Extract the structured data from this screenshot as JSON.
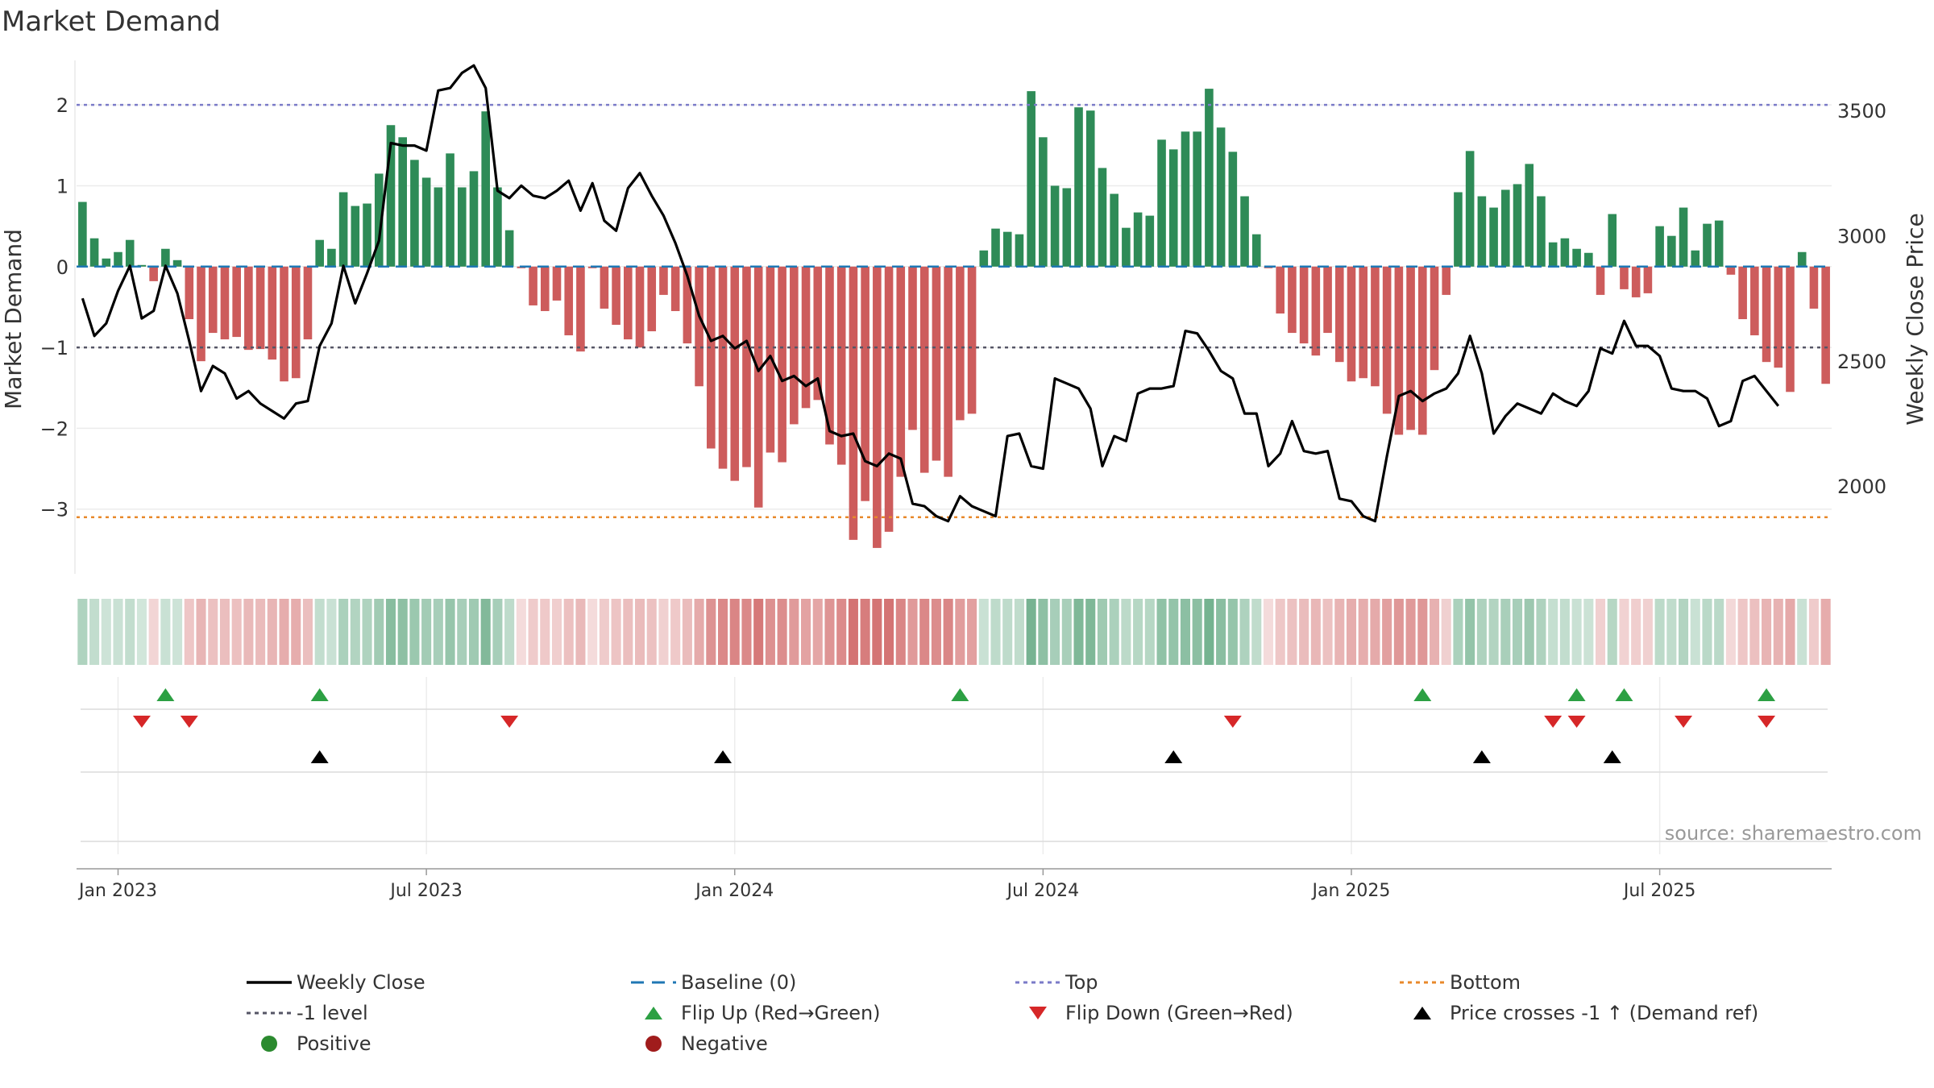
{
  "chart_data": {
    "type": "bar",
    "title": "Market Demand",
    "ylabel": "Market Demand",
    "y2label": "Weekly Close Price",
    "ylim": [
      -3.8,
      2.55
    ],
    "y2lim": [
      1650,
      3700
    ],
    "yticks": [
      2,
      1,
      0,
      -1,
      -2,
      -3
    ],
    "yticklabels": [
      "2",
      "1",
      "0",
      "−1",
      "−2",
      "−3"
    ],
    "y2ticks": [
      3500,
      3000,
      2500,
      2000
    ],
    "y2ticklabels": [
      "3500",
      "3000",
      "2500",
      "2000"
    ],
    "top_level": 2.0,
    "bottom_level": -3.1,
    "ref_level": -1.0,
    "x_start": "Dec 2022",
    "x_end": "Aug 2025",
    "x_weeks": 143,
    "xticks": [
      3,
      29,
      55,
      81,
      107,
      133
    ],
    "xticklabels": [
      "Jan 2023",
      "Jul 2023",
      "Jan 2024",
      "Jul 2024",
      "Jan 2025",
      "Jul 2025"
    ],
    "demand_values": [
      0.8,
      0.35,
      0.1,
      0.18,
      0.33,
      0.02,
      -0.18,
      0.22,
      0.08,
      -0.65,
      -1.17,
      -0.82,
      -0.9,
      -0.87,
      -1.03,
      -1.02,
      -1.15,
      -1.42,
      -1.38,
      -0.9,
      0.33,
      0.22,
      0.92,
      0.75,
      0.78,
      1.15,
      1.75,
      1.6,
      1.32,
      1.1,
      0.98,
      1.4,
      0.98,
      1.18,
      1.92,
      0.98,
      0.45,
      -0.02,
      -0.48,
      -0.55,
      -0.42,
      -0.85,
      -1.05,
      -0.02,
      -0.52,
      -0.72,
      -0.9,
      -1.0,
      -0.8,
      -0.35,
      -0.55,
      -0.95,
      -1.48,
      -2.25,
      -2.5,
      -2.65,
      -2.48,
      -2.98,
      -2.3,
      -2.42,
      -1.95,
      -1.75,
      -1.65,
      -2.2,
      -2.45,
      -3.38,
      -2.9,
      -3.48,
      -3.28,
      -2.6,
      -2.02,
      -2.55,
      -2.4,
      -2.6,
      -1.9,
      -1.82,
      0.2,
      0.47,
      0.43,
      0.4,
      2.17,
      1.6,
      1.0,
      0.97,
      1.97,
      1.93,
      1.22,
      0.9,
      0.48,
      0.67,
      0.63,
      1.57,
      1.45,
      1.67,
      1.67,
      2.2,
      1.72,
      1.42,
      0.87,
      0.4,
      -0.02,
      -0.58,
      -0.82,
      -0.95,
      -1.1,
      -0.82,
      -1.18,
      -1.42,
      -1.38,
      -1.48,
      -1.82,
      -2.08,
      -2.02,
      -2.08,
      -1.28,
      -0.35,
      0.92,
      1.43,
      0.87,
      0.73,
      0.95,
      1.02,
      1.27,
      0.87,
      0.3,
      0.35,
      0.22,
      0.17,
      -0.35,
      0.65,
      -0.28,
      -0.38,
      -0.33,
      0.5,
      0.38,
      0.73,
      0.2,
      0.53,
      0.57,
      -0.1,
      -0.65,
      -0.85,
      -1.18,
      -1.25,
      -1.55,
      0.18,
      -0.52,
      -1.45
    ],
    "price_values": [
      2750,
      2600,
      2650,
      2780,
      2880,
      2670,
      2700,
      2880,
      2770,
      2580,
      2380,
      2480,
      2450,
      2350,
      2380,
      2330,
      2300,
      2270,
      2330,
      2340,
      2560,
      2650,
      2880,
      2730,
      2850,
      2980,
      3370,
      3360,
      3360,
      3340,
      3580,
      3590,
      3650,
      3680,
      3590,
      3180,
      3150,
      3200,
      3160,
      3150,
      3180,
      3220,
      3100,
      3210,
      3060,
      3020,
      3190,
      3250,
      3160,
      3080,
      2970,
      2840,
      2680,
      2580,
      2600,
      2550,
      2580,
      2460,
      2520,
      2420,
      2440,
      2400,
      2430,
      2220,
      2200,
      2210,
      2100,
      2080,
      2130,
      2110,
      1930,
      1920,
      1880,
      1860,
      1960,
      1920,
      1900,
      1880,
      2200,
      2210,
      2080,
      2070,
      2430,
      2410,
      2390,
      2310,
      2080,
      2200,
      2180,
      2370,
      2390,
      2390,
      2400,
      2620,
      2610,
      2540,
      2460,
      2430,
      2290,
      2290,
      2080,
      2130,
      2260,
      2140,
      2130,
      2140,
      1950,
      1940,
      1880,
      1860,
      2120,
      2360,
      2380,
      2340,
      2370,
      2390,
      2450,
      2600,
      2450,
      2210,
      2280,
      2330,
      2310,
      2290,
      2370,
      2340,
      2320,
      2380,
      2550,
      2530,
      2660,
      2560,
      2560,
      2520,
      2390,
      2380,
      2380,
      2350,
      2240,
      2260,
      2420,
      2440,
      2380,
      2320
    ],
    "heatmap_label": "demand intensity strip",
    "flip_up_weeks": [
      7,
      20,
      74,
      113,
      126,
      130,
      142
    ],
    "flip_down_weeks": [
      5,
      9,
      36,
      97,
      124,
      126,
      135,
      142
    ],
    "price_cross_weeks": [
      20,
      54,
      92,
      118,
      129
    ],
    "source": "source: sharemaestro.com",
    "colors": {
      "positive": "#2e8b57",
      "negative": "#cd5c5c",
      "price": "#000000",
      "baseline": "#1f77b4",
      "top": "#7b7bc8",
      "bottom": "#e8892b",
      "ref": "#555566",
      "flip_up": "#2ca043",
      "flip_down": "#d62728",
      "cross": "#000000"
    }
  },
  "legend": [
    {
      "label": "Weekly Close",
      "symbol": "solid-line-black"
    },
    {
      "label": "Baseline (0)",
      "symbol": "dashed-line-blue"
    },
    {
      "label": "Top",
      "symbol": "dotted-line-purple"
    },
    {
      "label": "Bottom",
      "symbol": "dotted-line-orange"
    },
    {
      "label": "-1 level",
      "symbol": "dotted-line-gray"
    },
    {
      "label": "Flip Up (Red→Green)",
      "symbol": "triangle-up-green"
    },
    {
      "label": "Flip Down (Green→Red)",
      "symbol": "triangle-down-red"
    },
    {
      "label": "Price crosses -1 ↑ (Demand ref)",
      "symbol": "triangle-up-black"
    },
    {
      "label": "Positive",
      "symbol": "circle-green"
    },
    {
      "label": "Negative",
      "symbol": "circle-red"
    }
  ]
}
